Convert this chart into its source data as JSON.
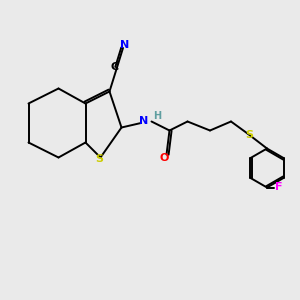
{
  "bg_color": "#eaeaea",
  "atom_colors": {
    "C": "#000000",
    "N": "#0000ff",
    "S": "#cccc00",
    "O": "#ff0000",
    "H": "#5f9ea0",
    "F": "#ff00ff"
  },
  "bond_color": "#000000",
  "lw": 1.4,
  "fs": 8.0
}
